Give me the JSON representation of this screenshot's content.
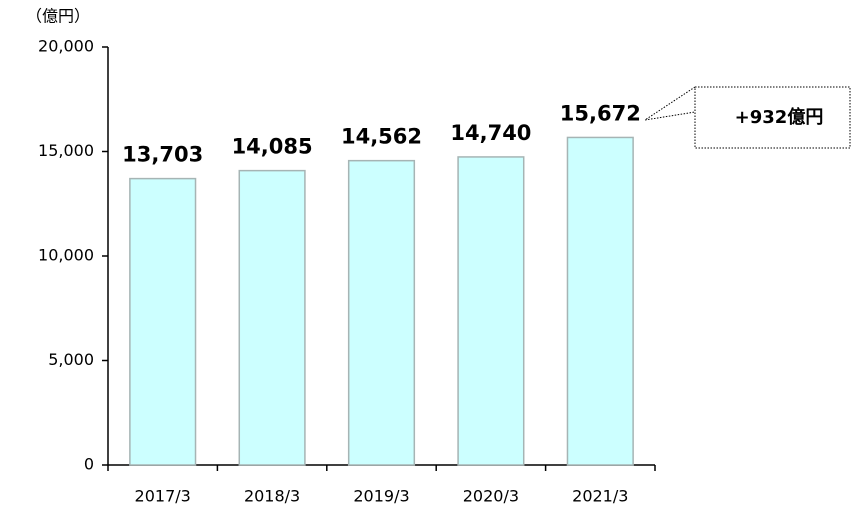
{
  "chart_data": {
    "type": "bar",
    "y_label": "（億円）",
    "categories": [
      "2017/3",
      "2018/3",
      "2019/3",
      "2020/3",
      "2021/3"
    ],
    "values": [
      13703,
      14085,
      14562,
      14740,
      15672
    ],
    "value_labels": [
      "13,703",
      "14,085",
      "14,562",
      "14,740",
      "15,672"
    ],
    "color": "#ccffff",
    "ylim": [
      0,
      20000
    ],
    "yticks": [
      0,
      {
        "value": 5000,
        "label": "5,000"
      },
      {
        "value": 10000,
        "label": "10,000"
      },
      {
        "value": 15000,
        "label": "15,000"
      },
      {
        "value": 20000,
        "label": "20,000"
      }
    ],
    "annotation": "+932億円"
  }
}
